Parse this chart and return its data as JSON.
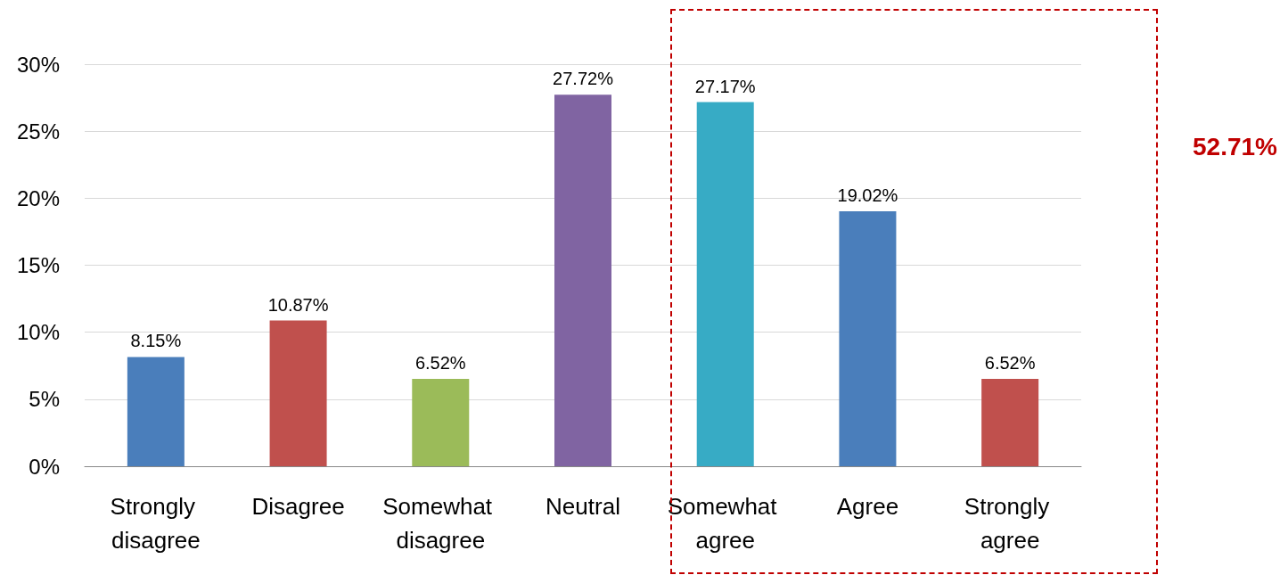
{
  "chart_data": {
    "type": "bar",
    "categories": [
      "Strongly disagree",
      "Disagree",
      "Somewhat disagree",
      "Neutral",
      "Somewhat agree",
      "Agree",
      "Strongly agree"
    ],
    "values": [
      8.15,
      10.87,
      6.52,
      27.72,
      27.17,
      19.02,
      6.52
    ],
    "colors": [
      "#4a7ebb",
      "#c0504d",
      "#9bbb59",
      "#8064a2",
      "#37abc5",
      "#4a7ebb",
      "#c0504d"
    ],
    "value_labels": [
      "8.15%",
      "10.87%",
      "6.52%",
      "27.72%",
      "27.17%",
      "19.02%",
      "6.52%"
    ],
    "ylim": [
      0,
      30
    ],
    "yticks": [
      {
        "value": 0,
        "label": "0%"
      },
      {
        "value": 5,
        "label": "5%"
      },
      {
        "value": 10,
        "label": "10%"
      },
      {
        "value": 15,
        "label": "15%"
      },
      {
        "value": 20,
        "label": "20%"
      },
      {
        "value": 25,
        "label": "25%"
      },
      {
        "value": 30,
        "label": "30%"
      }
    ],
    "grid": "y",
    "annotations": [
      "52.71%"
    ]
  }
}
